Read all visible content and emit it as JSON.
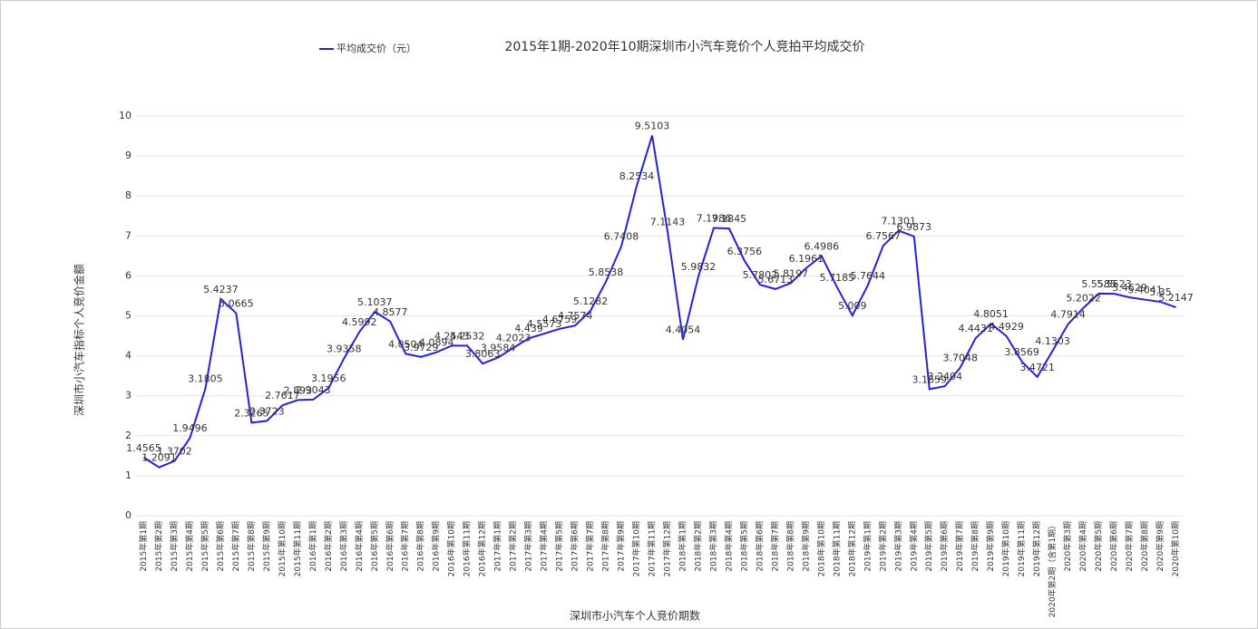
{
  "chart_data": {
    "type": "line",
    "title": "2015年1期-2020年10期深圳市小汽车竞价个人竞拍平均成交价",
    "x_label": "深圳市小汽车个人竞价期数",
    "y_label": "深圳市小汽车指标个人竞价金额",
    "categories": [
      "2015年第1期",
      "2015年第2期",
      "2015年第3期",
      "2015年第4期",
      "2015年第5期",
      "2015年第6期",
      "2015年第7期",
      "2015年第8期",
      "2015年第9期",
      "2015年第10期",
      "2015年第11期",
      "2016年第1期",
      "2016年第2期",
      "2016年第3期",
      "2016年第4期",
      "2016年第5期",
      "2016年第6期",
      "2016年第7期",
      "2016年第8期",
      "2016年第9期",
      "2016年第10期",
      "2016年第11期",
      "2016年第12期",
      "2017年第1期",
      "2017年第2期",
      "2017年第3期",
      "2017年第4期",
      "2017年第5期",
      "2017年第6期",
      "2017年第7期",
      "2017年第8期",
      "2017年第9期",
      "2017年第10期",
      "2017年第11期",
      "2017年第12期",
      "2018年第1期",
      "2018年第2期",
      "2018年第3期",
      "2018年第4期",
      "2018年第5期",
      "2018年第6期",
      "2018年第7期",
      "2018年第8期",
      "2018年第9期",
      "2018年第10期",
      "2018年第11期",
      "2018年第12期",
      "2019年第1期",
      "2019年第2期",
      "2019年第3期",
      "2019年第4期",
      "2019年第5期",
      "2019年第6期",
      "2019年第7期",
      "2019年第8期",
      "2019年第9期",
      "2019年第10期",
      "2019年第11期",
      "2019年第12期",
      "2020年第2期（含第1期）",
      "2020年第3期",
      "2020年第4期",
      "2020年第5期",
      "2020年第6期",
      "2020年第7期",
      "2020年第8期",
      "2020年第9期",
      "2020年第10期"
    ],
    "series": [
      {
        "name": "平均成交价（元）",
        "color": "#2222dd",
        "values": [
          1.4565,
          1.2091,
          1.3702,
          1.9496,
          3.1805,
          5.4237,
          5.0665,
          2.3265,
          2.3723,
          2.7617,
          2.893,
          2.9043,
          3.1956,
          3.9358,
          4.5992,
          5.1037,
          4.8577,
          4.0504,
          3.9729,
          4.0894,
          4.2543,
          4.2532,
          3.8063,
          3.9584,
          4.2023,
          4.439,
          4.5573,
          4.6759,
          4.7574,
          5.1282,
          5.8538,
          6.7408,
          8.2534,
          9.5103,
          7.1143,
          4.4054,
          5.9832,
          7.1986,
          7.1845,
          6.3756,
          5.7802,
          5.6713,
          5.8197,
          6.1961,
          6.4986,
          5.7185,
          5.009,
          5.7644,
          6.7567,
          7.1301,
          6.9873,
          3.1659,
          3.2404,
          3.7048,
          4.4431,
          4.8051,
          4.4929,
          3.8569,
          3.4721,
          4.1303,
          4.7914,
          5.2022,
          5.5585,
          5.5523,
          5.4629,
          5.4041,
          5.35,
          5.2147
        ]
      }
    ],
    "ylim": [
      0,
      10
    ],
    "yticks": [
      0,
      1,
      2,
      3,
      4,
      5,
      6,
      7,
      8,
      9,
      10
    ],
    "grid": true
  }
}
